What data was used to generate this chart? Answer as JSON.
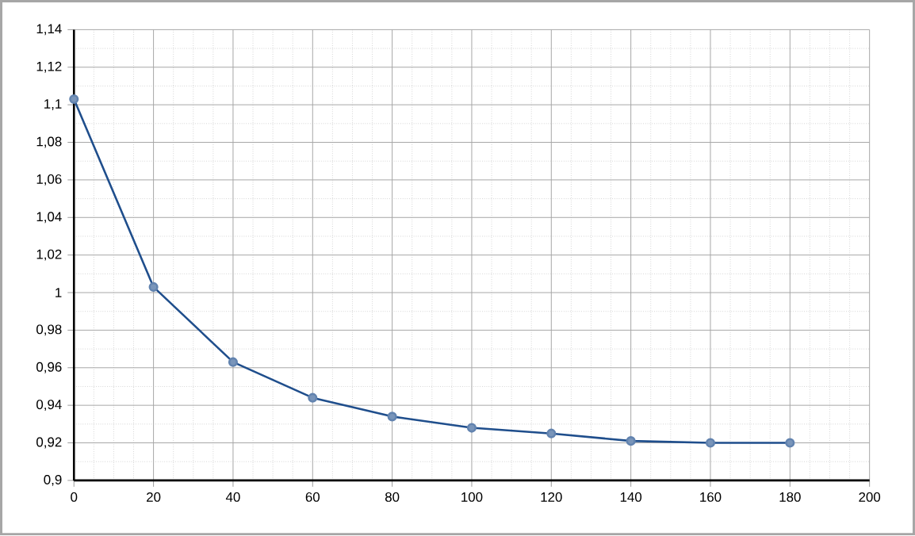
{
  "chart_data": {
    "type": "line",
    "x": [
      0,
      20,
      40,
      60,
      80,
      100,
      120,
      140,
      160,
      180
    ],
    "series": [
      {
        "color": "#1f4e8c",
        "values": [
          1.103,
          1.003,
          0.963,
          0.944,
          0.934,
          0.928,
          0.925,
          0.921,
          0.92,
          0.92
        ]
      }
    ],
    "xlim": [
      0,
      200
    ],
    "xticks": [
      0,
      20,
      40,
      60,
      80,
      100,
      120,
      140,
      160,
      180,
      200
    ],
    "ylim": [
      0.9,
      1.14
    ],
    "yticks": [
      {
        "value": 0.9,
        "label": "0,9"
      },
      {
        "value": 0.92,
        "label": "0,92"
      },
      {
        "value": 0.94,
        "label": "0,94"
      },
      {
        "value": 0.96,
        "label": "0,96"
      },
      {
        "value": 0.98,
        "label": "0,98"
      },
      {
        "value": 1,
        "label": "1"
      },
      {
        "value": 1.02,
        "label": "1,02"
      },
      {
        "value": 1.04,
        "label": "1,04"
      },
      {
        "value": 1.06,
        "label": "1,06"
      },
      {
        "value": 1.08,
        "label": "1,08"
      },
      {
        "value": 1.1,
        "label": "1,1"
      },
      {
        "value": 1.12,
        "label": "1,12"
      },
      {
        "value": 1.14,
        "label": "1,14"
      }
    ],
    "grid": true,
    "marker": "circle",
    "line_style": "solid"
  }
}
